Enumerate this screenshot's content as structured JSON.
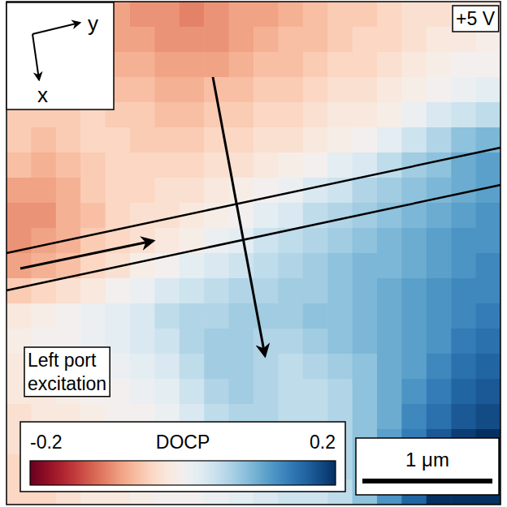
{
  "chart_data": {
    "type": "heatmap",
    "tick_labels": false,
    "xlim": [
      0,
      3.8
    ],
    "ylim": [
      0,
      3.88
    ],
    "xlabel": "x",
    "ylabel": "y",
    "annotations": [
      "+5 V",
      "Left port excitation"
    ],
    "colorbar_label": "DOCP",
    "color_range": [
      -0.2,
      0.2
    ],
    "color_ticks": [
      -0.2,
      0.2
    ],
    "scale_bar": {
      "value": 1,
      "label": "1 μm"
    },
    "cells": [
      [
        -0.03,
        -0.04,
        -0.06,
        -0.07,
        -0.08,
        -0.09,
        -0.09,
        -0.1,
        -0.09,
        -0.08,
        -0.08,
        -0.07,
        -0.06,
        -0.05,
        -0.05,
        -0.04,
        -0.03,
        -0.03,
        -0.02,
        -0.02
      ],
      [
        -0.03,
        -0.04,
        -0.06,
        -0.07,
        -0.08,
        -0.08,
        -0.09,
        -0.09,
        -0.09,
        -0.08,
        -0.07,
        -0.06,
        -0.06,
        -0.05,
        -0.04,
        -0.04,
        -0.03,
        -0.02,
        -0.02,
        -0.01
      ],
      [
        -0.04,
        -0.05,
        -0.05,
        -0.06,
        -0.07,
        -0.07,
        -0.08,
        -0.08,
        -0.08,
        -0.07,
        -0.06,
        -0.06,
        -0.05,
        -0.04,
        -0.04,
        -0.03,
        -0.02,
        -0.01,
        0,
        0
      ],
      [
        -0.04,
        -0.05,
        -0.05,
        -0.05,
        -0.06,
        -0.06,
        -0.07,
        -0.07,
        -0.06,
        -0.06,
        -0.05,
        -0.05,
        -0.04,
        -0.03,
        -0.03,
        -0.02,
        -0.01,
        0,
        0.01,
        0.02
      ],
      [
        -0.05,
        -0.05,
        -0.05,
        -0.04,
        -0.05,
        -0.05,
        -0.06,
        -0.06,
        -0.05,
        -0.05,
        -0.04,
        -0.04,
        -0.03,
        -0.02,
        -0.02,
        -0.01,
        0.01,
        0.03,
        0.04,
        0.05
      ],
      [
        -0.05,
        -0.06,
        -0.05,
        -0.04,
        -0.04,
        -0.05,
        -0.05,
        -0.05,
        -0.04,
        -0.04,
        -0.03,
        -0.03,
        -0.02,
        -0.01,
        0,
        0.02,
        0.04,
        0.06,
        0.08,
        0.09
      ],
      [
        -0.06,
        -0.07,
        -0.06,
        -0.05,
        -0.04,
        -0.04,
        -0.04,
        -0.04,
        -0.03,
        -0.03,
        -0.02,
        -0.01,
        0,
        0.02,
        0.03,
        0.05,
        0.07,
        0.08,
        0.1,
        0.11
      ],
      [
        -0.08,
        -0.08,
        -0.07,
        -0.05,
        -0.04,
        -0.04,
        -0.03,
        -0.03,
        -0.02,
        -0.01,
        0,
        0.01,
        0.03,
        0.04,
        0.06,
        0.07,
        0.08,
        0.09,
        0.1,
        0.11
      ],
      [
        -0.09,
        -0.09,
        -0.07,
        -0.06,
        -0.04,
        -0.03,
        -0.03,
        -0.02,
        -0.01,
        0,
        0.02,
        0.03,
        0.05,
        0.06,
        0.07,
        0.08,
        0.09,
        0.1,
        0.11,
        0.12
      ],
      [
        -0.09,
        -0.08,
        -0.07,
        -0.05,
        -0.04,
        -0.03,
        -0.02,
        -0.01,
        0.01,
        0.02,
        0.04,
        0.05,
        0.06,
        0.07,
        0.08,
        0.09,
        0.1,
        0.11,
        0.12,
        0.12
      ],
      [
        -0.08,
        -0.07,
        -0.06,
        -0.04,
        -0.03,
        -0.01,
        0,
        0.02,
        0.03,
        0.04,
        0.05,
        0.06,
        0.07,
        0.08,
        0.09,
        0.09,
        0.1,
        0.11,
        0.12,
        0.13
      ],
      [
        -0.05,
        -0.04,
        -0.03,
        -0.02,
        0,
        0.01,
        0.03,
        0.04,
        0.05,
        0.06,
        0.06,
        0.07,
        0.07,
        0.08,
        0.09,
        0.1,
        0.11,
        0.12,
        0.13,
        0.13
      ],
      [
        -0.02,
        -0.01,
        0,
        0.01,
        0.02,
        0.03,
        0.05,
        0.06,
        0.06,
        0.07,
        0.07,
        0.07,
        0.08,
        0.08,
        0.09,
        0.1,
        0.11,
        0.12,
        0.13,
        0.14
      ],
      [
        -0.01,
        0,
        0,
        0.01,
        0.02,
        0.03,
        0.04,
        0.06,
        0.07,
        0.07,
        0.06,
        0.06,
        0.07,
        0.08,
        0.09,
        0.1,
        0.11,
        0.12,
        0.14,
        0.15
      ],
      [
        -0.02,
        -0.01,
        0,
        0,
        0.01,
        0.02,
        0.03,
        0.05,
        0.07,
        0.07,
        0.06,
        0.05,
        0.06,
        0.07,
        0.08,
        0.1,
        0.11,
        0.13,
        0.15,
        0.16
      ],
      [
        -0.02,
        -0.02,
        -0.01,
        0,
        0,
        0.01,
        0.02,
        0.04,
        0.06,
        0.07,
        0.06,
        0.05,
        0.05,
        0.06,
        0.08,
        0.1,
        0.12,
        0.14,
        0.16,
        0.17
      ],
      [
        -0.03,
        -0.02,
        -0.02,
        -0.01,
        0,
        0,
        0.01,
        0.03,
        0.05,
        0.06,
        0.06,
        0.05,
        0.05,
        0.06,
        0.08,
        0.1,
        0.13,
        0.15,
        0.17,
        0.18
      ],
      [
        -0.03,
        -0.03,
        -0.02,
        -0.01,
        -0.01,
        0,
        0.01,
        0.02,
        0.03,
        0.05,
        0.05,
        0.05,
        0.05,
        0.06,
        0.08,
        0.11,
        0.14,
        0.17,
        0.19,
        0.2
      ],
      [
        -0.04,
        -0.03,
        -0.03,
        -0.02,
        -0.01,
        0,
        0,
        0.01,
        0.02,
        0.03,
        0.04,
        0.04,
        0.05,
        0.06,
        0.08,
        0.11,
        0.15,
        0.19,
        0.2,
        0.2
      ],
      [
        -0.04,
        -0.04,
        -0.03,
        -0.02,
        -0.02,
        -0.01,
        0,
        0,
        0.01,
        0.02,
        0.03,
        0.04,
        0.04,
        0.05,
        0.08,
        0.12,
        0.16,
        0.2,
        0.2,
        0.2
      ]
    ]
  }
}
